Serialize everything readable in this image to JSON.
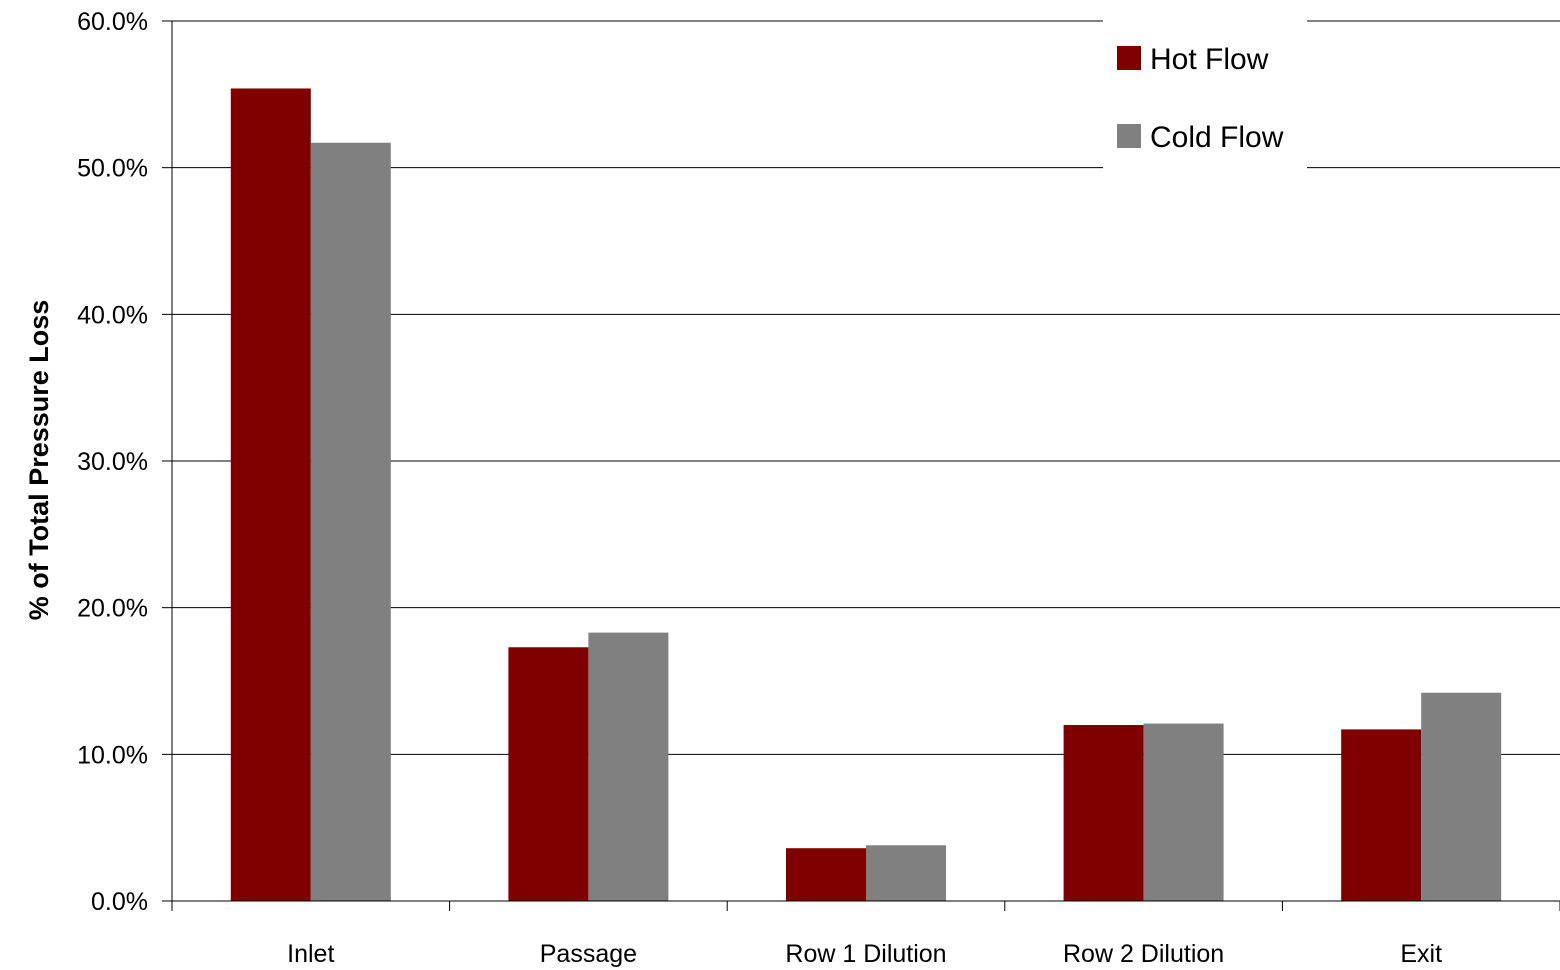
{
  "chart_data": {
    "type": "bar",
    "categories": [
      "Inlet",
      "Passage",
      "Row 1 Dilution",
      "Row 2 Dilution",
      "Exit"
    ],
    "series": [
      {
        "name": "Hot Flow",
        "values": [
          55.4,
          17.3,
          3.6,
          12.0,
          11.7
        ],
        "color": "#800000"
      },
      {
        "name": "Cold Flow",
        "values": [
          51.7,
          18.3,
          3.8,
          12.1,
          14.2
        ],
        "color": "#808080"
      }
    ],
    "xlabel": "",
    "ylabel": "% of Total Pressure Loss",
    "ylim": [
      0,
      60
    ],
    "yticks": [
      "0.0%",
      "10.0%",
      "20.0%",
      "30.0%",
      "40.0%",
      "50.0%",
      "60.0%"
    ],
    "grid": true,
    "legend_position": "top-right"
  }
}
